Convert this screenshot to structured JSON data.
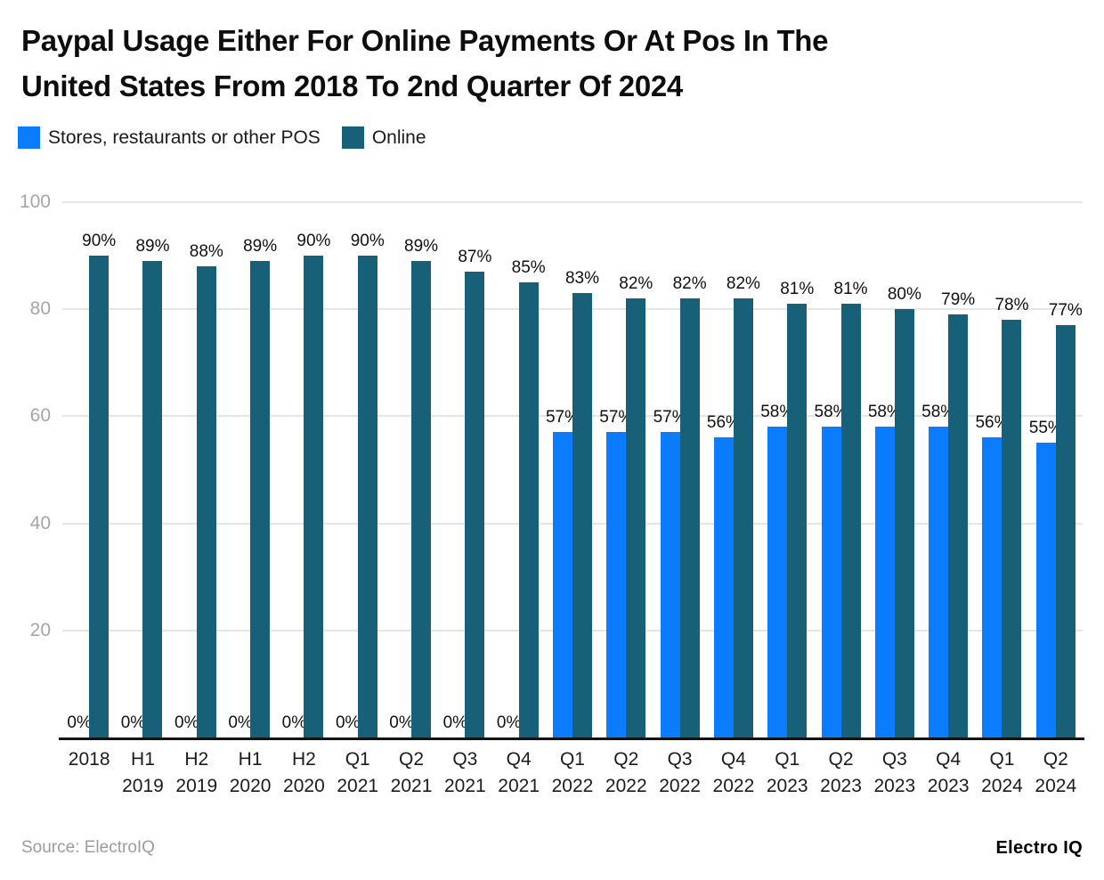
{
  "header": {
    "title_lines": [
      "Paypal Usage Either For Online Payments Or At Pos In The",
      "United States From 2018 To 2nd Quarter Of 2024"
    ]
  },
  "legend": {
    "items": [
      {
        "label": "Stores, restaurants or other POS",
        "color": "#0a7cfc"
      },
      {
        "label": "Online",
        "color": "#185f78"
      }
    ]
  },
  "chart_data": {
    "type": "bar",
    "title": "Paypal Usage Either For Online Payments Or At Pos In The United States From 2018 To 2nd Quarter Of 2024",
    "categories": [
      [
        "2018",
        ""
      ],
      [
        "H1",
        "2019"
      ],
      [
        "H2",
        "2019"
      ],
      [
        "H1",
        "2020"
      ],
      [
        "H2",
        "2020"
      ],
      [
        "Q1",
        "2021"
      ],
      [
        "Q2",
        "2021"
      ],
      [
        "Q3",
        "2021"
      ],
      [
        "Q4",
        "2021"
      ],
      [
        "Q1",
        "2022"
      ],
      [
        "Q2",
        "2022"
      ],
      [
        "Q3",
        "2022"
      ],
      [
        "Q4",
        "2022"
      ],
      [
        "Q1",
        "2023"
      ],
      [
        "Q2",
        "2023"
      ],
      [
        "Q3",
        "2023"
      ],
      [
        "Q4",
        "2023"
      ],
      [
        "Q1",
        "2024"
      ],
      [
        "Q2",
        "2024"
      ]
    ],
    "series": [
      {
        "name": "Stores, restaurants or other POS",
        "color": "#0a7cfc",
        "values": [
          0,
          0,
          0,
          0,
          0,
          0,
          0,
          0,
          0,
          57,
          57,
          57,
          56,
          58,
          58,
          58,
          58,
          56,
          55
        ]
      },
      {
        "name": "Online",
        "color": "#185f78",
        "values": [
          90,
          89,
          88,
          89,
          90,
          90,
          89,
          87,
          85,
          83,
          82,
          82,
          82,
          81,
          81,
          80,
          79,
          78,
          77
        ]
      }
    ],
    "xlabel": "",
    "ylabel": "",
    "ylim": [
      0,
      100
    ],
    "yticks": [
      20,
      40,
      60,
      80,
      100
    ],
    "grid": true,
    "legend_position": "top-left",
    "value_label_suffix": "%"
  },
  "footer": {
    "source": "Source: ElectroIQ",
    "brand": "Electro IQ"
  }
}
